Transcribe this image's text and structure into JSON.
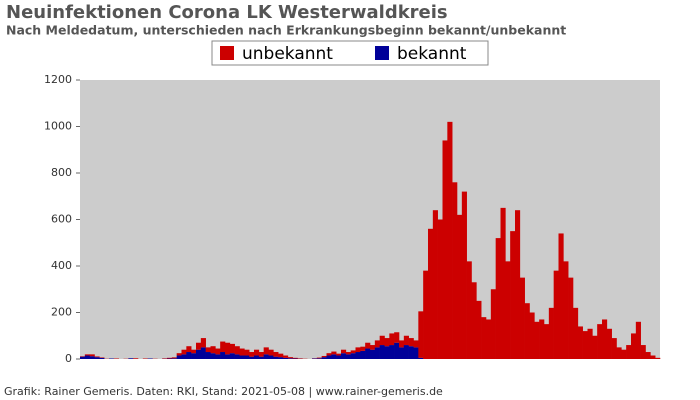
{
  "chart_data": {
    "type": "stacked_bar",
    "title": "Neuinfektionen Corona LK Westerwaldkreis",
    "subtitle": "Nach Meldedatum, unterschieden nach Erkrankungsbeginn bekannt/unbekannt",
    "footer": "Grafik: Rainer Gemeris. Daten: RKI, Stand: 2021-05-08 | www.rainer-gemeris.de",
    "categories": [
      null,
      null,
      null,
      null,
      null,
      null,
      null,
      null,
      null,
      null,
      null,
      null,
      null,
      null,
      null,
      null,
      null,
      null,
      null,
      null,
      null,
      null,
      null,
      null,
      null,
      null,
      null,
      null,
      null,
      null,
      null,
      null,
      null,
      null,
      null,
      null,
      null,
      null,
      null,
      null,
      null,
      null,
      null,
      null,
      null,
      null,
      null,
      null,
      null,
      null,
      null,
      null,
      null,
      null,
      null,
      null,
      null,
      null,
      null,
      null,
      null,
      null,
      null,
      null,
      null,
      null,
      null,
      null,
      null,
      null,
      null,
      null,
      null,
      null,
      null,
      null,
      null,
      null,
      null,
      null,
      null,
      null,
      null,
      null,
      null,
      null,
      null,
      null,
      null,
      null,
      null,
      null,
      null,
      null,
      null,
      null,
      null,
      null,
      null,
      null,
      null,
      null,
      null,
      null,
      null,
      null,
      null,
      null,
      null,
      null,
      null,
      null,
      null,
      null,
      null,
      null,
      null,
      null,
      null,
      null
    ],
    "series": [
      {
        "name": "bekannt",
        "color": "#000099",
        "values": [
          10,
          15,
          12,
          8,
          5,
          0,
          2,
          0,
          0,
          0,
          3,
          0,
          0,
          0,
          2,
          0,
          0,
          1,
          2,
          3,
          15,
          20,
          30,
          25,
          40,
          50,
          30,
          25,
          20,
          30,
          20,
          25,
          20,
          15,
          15,
          10,
          15,
          10,
          20,
          15,
          10,
          8,
          5,
          3,
          2,
          1,
          0,
          0,
          2,
          3,
          8,
          15,
          20,
          15,
          25,
          20,
          25,
          30,
          35,
          45,
          40,
          50,
          60,
          55,
          60,
          70,
          50,
          60,
          55,
          50,
          5,
          0,
          0,
          0,
          0,
          0,
          0,
          0,
          0,
          0,
          0,
          0,
          0,
          0,
          0,
          0,
          0,
          0,
          0,
          0,
          0,
          0,
          0,
          0,
          0,
          0,
          0,
          0,
          0,
          0,
          0,
          0,
          0,
          0,
          0,
          0,
          0,
          0,
          0,
          0,
          0,
          0,
          0,
          0,
          0,
          0,
          0,
          0,
          0,
          0
        ]
      },
      {
        "name": "unbekannt",
        "color": "#cc0000",
        "values": [
          2,
          5,
          8,
          3,
          2,
          1,
          0,
          2,
          0,
          1,
          0,
          3,
          0,
          2,
          0,
          1,
          0,
          2,
          3,
          4,
          10,
          20,
          25,
          15,
          30,
          40,
          20,
          30,
          25,
          45,
          50,
          40,
          35,
          30,
          25,
          20,
          25,
          20,
          30,
          25,
          20,
          15,
          10,
          5,
          3,
          2,
          1,
          0,
          1,
          3,
          5,
          10,
          12,
          8,
          15,
          10,
          12,
          20,
          18,
          25,
          20,
          30,
          40,
          35,
          50,
          45,
          30,
          40,
          35,
          30,
          200,
          380,
          560,
          640,
          600,
          940,
          1020,
          760,
          620,
          720,
          420,
          330,
          250,
          180,
          170,
          300,
          520,
          650,
          420,
          550,
          640,
          350,
          240,
          200,
          160,
          170,
          150,
          220,
          380,
          540,
          420,
          350,
          220,
          140,
          120,
          130,
          100,
          150,
          170,
          130,
          90,
          50,
          40,
          60,
          110,
          160,
          60,
          30,
          15,
          5
        ]
      }
    ],
    "legend_order": [
      1,
      0
    ],
    "ylim": [
      0,
      1200
    ],
    "yticks": [
      0,
      200,
      400,
      600,
      800,
      1000,
      1200
    ]
  }
}
